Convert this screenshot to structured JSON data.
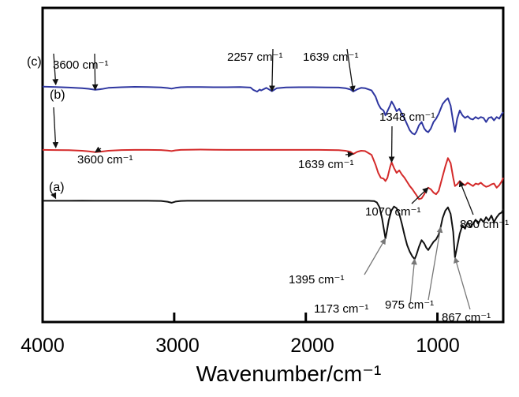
{
  "chart_data": {
    "type": "line",
    "title": "",
    "xlabel": "Wavenumber/cm⁻¹",
    "ylabel": "",
    "xlim": [
      4000,
      500
    ],
    "x_reversed": true,
    "grid": false,
    "x_ticks": [
      {
        "value": 4000,
        "label": "4000"
      },
      {
        "value": 3000,
        "label": "3000"
      },
      {
        "value": 2000,
        "label": "2000"
      },
      {
        "value": 1000,
        "label": "1000"
      }
    ],
    "series": [
      {
        "label": "(c)",
        "color": "#2e36a0",
        "x": [
          4000,
          3900,
          3800,
          3700,
          3650,
          3600,
          3550,
          3500,
          3400,
          3300,
          3200,
          3100,
          3050,
          3020,
          2990,
          2950,
          2900,
          2800,
          2700,
          2600,
          2500,
          2420,
          2400,
          2370,
          2350,
          2340,
          2300,
          2257,
          2220,
          2150,
          2050,
          1950,
          1850,
          1750,
          1700,
          1660,
          1639,
          1610,
          1580,
          1550,
          1500,
          1470,
          1450,
          1430,
          1410,
          1395,
          1380,
          1360,
          1348,
          1330,
          1310,
          1290,
          1270,
          1250,
          1230,
          1210,
          1190,
          1173,
          1160,
          1140,
          1120,
          1100,
          1085,
          1070,
          1050,
          1030,
          1010,
          990,
          975,
          960,
          940,
          920,
          900,
          880,
          867,
          850,
          830,
          810,
          790,
          770,
          750,
          730,
          710,
          690,
          670,
          650,
          630,
          610,
          590,
          570,
          550,
          530,
          510,
          500
        ],
        "y": [
          99.5,
          99.3,
          99.0,
          98.6,
          98.2,
          97.6,
          98.1,
          98.8,
          99.2,
          99.4,
          99.3,
          99.1,
          98.7,
          98.3,
          98.8,
          99.2,
          99.3,
          99.3,
          99.2,
          99.2,
          99.3,
          99.0,
          97.6,
          96.5,
          97.8,
          97.2,
          98.8,
          96.8,
          98.6,
          99.1,
          99.2,
          99.2,
          99.1,
          99.0,
          98.6,
          97.8,
          96.6,
          97.9,
          98.8,
          98.6,
          97.2,
          93.5,
          89.0,
          86.2,
          85.0,
          82.0,
          84.6,
          88.0,
          90.5,
          88.0,
          84.5,
          86.0,
          83.0,
          80.0,
          76.5,
          73.0,
          71.0,
          70.5,
          72.0,
          76.0,
          78.0,
          74.0,
          72.5,
          71.8,
          74.0,
          78.0,
          80.0,
          83.0,
          86.0,
          89.0,
          91.0,
          92.5,
          88.0,
          78.0,
          72.0,
          80.0,
          85.0,
          82.0,
          80.5,
          81.5,
          80.0,
          79.5,
          81.0,
          80.0,
          81.0,
          80.5,
          78.0,
          80.5,
          81.0,
          79.0,
          81.0,
          80.0,
          83.0,
          84.0
        ]
      },
      {
        "label": "(b)",
        "color": "#d42a2a",
        "x": [
          4000,
          3900,
          3800,
          3700,
          3650,
          3600,
          3550,
          3500,
          3400,
          3300,
          3200,
          3100,
          3050,
          3020,
          2990,
          2950,
          2900,
          2800,
          2700,
          2600,
          2500,
          2400,
          2300,
          2200,
          2100,
          2000,
          1900,
          1800,
          1750,
          1700,
          1660,
          1639,
          1610,
          1580,
          1550,
          1500,
          1470,
          1450,
          1430,
          1410,
          1395,
          1380,
          1360,
          1348,
          1330,
          1310,
          1290,
          1270,
          1250,
          1230,
          1210,
          1190,
          1173,
          1160,
          1140,
          1120,
          1100,
          1085,
          1070,
          1050,
          1030,
          1010,
          990,
          975,
          960,
          940,
          920,
          900,
          880,
          867,
          850,
          830,
          810,
          790,
          770,
          750,
          730,
          710,
          690,
          670,
          650,
          630,
          610,
          590,
          570,
          550,
          530,
          510,
          500
        ],
        "y": [
          61.0,
          60.9,
          60.8,
          60.5,
          60.1,
          59.6,
          60.0,
          60.5,
          60.9,
          61.0,
          61.0,
          60.9,
          60.6,
          60.3,
          60.7,
          61.0,
          61.1,
          61.2,
          61.1,
          61.0,
          61.0,
          61.0,
          61.0,
          61.0,
          61.0,
          61.0,
          61.0,
          60.9,
          60.8,
          60.5,
          59.8,
          58.5,
          59.8,
          60.5,
          60.3,
          58.0,
          52.0,
          47.0,
          44.0,
          43.5,
          42.0,
          44.0,
          50.5,
          53.5,
          50.0,
          47.0,
          48.5,
          46.0,
          44.0,
          41.5,
          39.0,
          37.0,
          35.0,
          33.5,
          31.0,
          31.5,
          34.0,
          36.5,
          38.0,
          37.0,
          35.0,
          34.0,
          36.0,
          40.5,
          45.0,
          51.0,
          56.0,
          53.0,
          44.0,
          39.0,
          40.0,
          42.0,
          40.5,
          39.5,
          41.0,
          40.0,
          39.0,
          40.5,
          40.0,
          41.0,
          39.5,
          38.5,
          39.0,
          40.0,
          40.5,
          38.0,
          39.5,
          42.0,
          44.0
        ]
      },
      {
        "label": "(a)",
        "color": "#111111",
        "x": [
          4000,
          3900,
          3800,
          3700,
          3600,
          3500,
          3400,
          3300,
          3200,
          3100,
          3050,
          3020,
          2990,
          2950,
          2900,
          2800,
          2700,
          2600,
          2500,
          2400,
          2300,
          2200,
          2100,
          2000,
          1900,
          1800,
          1700,
          1600,
          1560,
          1540,
          1520,
          1500,
          1480,
          1460,
          1440,
          1420,
          1410,
          1400,
          1395,
          1385,
          1370,
          1350,
          1330,
          1310,
          1290,
          1270,
          1250,
          1230,
          1210,
          1190,
          1173,
          1160,
          1140,
          1120,
          1100,
          1085,
          1070,
          1050,
          1030,
          1010,
          990,
          975,
          960,
          940,
          920,
          900,
          880,
          867,
          850,
          830,
          810,
          790,
          770,
          750,
          730,
          710,
          690,
          670,
          650,
          630,
          610,
          590,
          570,
          550,
          530,
          510,
          500
        ],
        "y": [
          30.0,
          30.0,
          30.0,
          30.1,
          30.0,
          30.0,
          30.0,
          30.0,
          30.0,
          29.9,
          29.4,
          28.8,
          29.5,
          29.9,
          30.0,
          30.0,
          30.0,
          30.0,
          30.0,
          30.0,
          30.0,
          30.0,
          30.0,
          30.0,
          30.0,
          30.0,
          30.0,
          30.0,
          30.0,
          30.0,
          30.0,
          29.9,
          29.8,
          29.0,
          26.0,
          19.0,
          14.0,
          9.5,
          7.0,
          11.0,
          18.0,
          24.0,
          26.5,
          25.5,
          22.0,
          16.0,
          9.0,
          3.0,
          -1.0,
          -4.0,
          -5.5,
          -3.0,
          2.0,
          6.0,
          4.0,
          1.5,
          0.0,
          2.5,
          5.0,
          6.5,
          9.5,
          14.0,
          19.5,
          24.0,
          26.0,
          22.0,
          11.0,
          -4.5,
          2.0,
          10.0,
          15.0,
          13.0,
          17.0,
          14.0,
          16.0,
          18.5,
          16.0,
          19.0,
          17.0,
          20.0,
          18.0,
          21.0,
          17.0,
          20.0,
          22.0,
          23.0,
          25.0
        ]
      }
    ],
    "annotations": [
      {
        "label": "3600 cm⁻¹",
        "x": 3600,
        "series": 0
      },
      {
        "label": "2257 cm⁻¹",
        "x": 2257,
        "series": 0
      },
      {
        "label": "1639 cm⁻¹",
        "x": 1639,
        "series": 0
      },
      {
        "label": "3600 cm⁻¹",
        "x": 3600,
        "series": 1
      },
      {
        "label": "1639 cm⁻¹",
        "x": 1639,
        "series": 1
      },
      {
        "label": "1348 cm⁻¹",
        "x": 1348,
        "series": 1
      },
      {
        "label": "1070 cm⁻¹",
        "x": 1070,
        "series": 1
      },
      {
        "label": "830 cm⁻¹",
        "x": 830,
        "series": 1
      },
      {
        "label": "1395 cm⁻¹",
        "x": 1395,
        "series": 2
      },
      {
        "label": "1173 cm⁻¹",
        "x": 1173,
        "series": 2
      },
      {
        "label": "975 cm⁻¹",
        "x": 975,
        "series": 2
      },
      {
        "label": "867 cm⁻¹",
        "x": 867,
        "series": 2
      }
    ]
  }
}
